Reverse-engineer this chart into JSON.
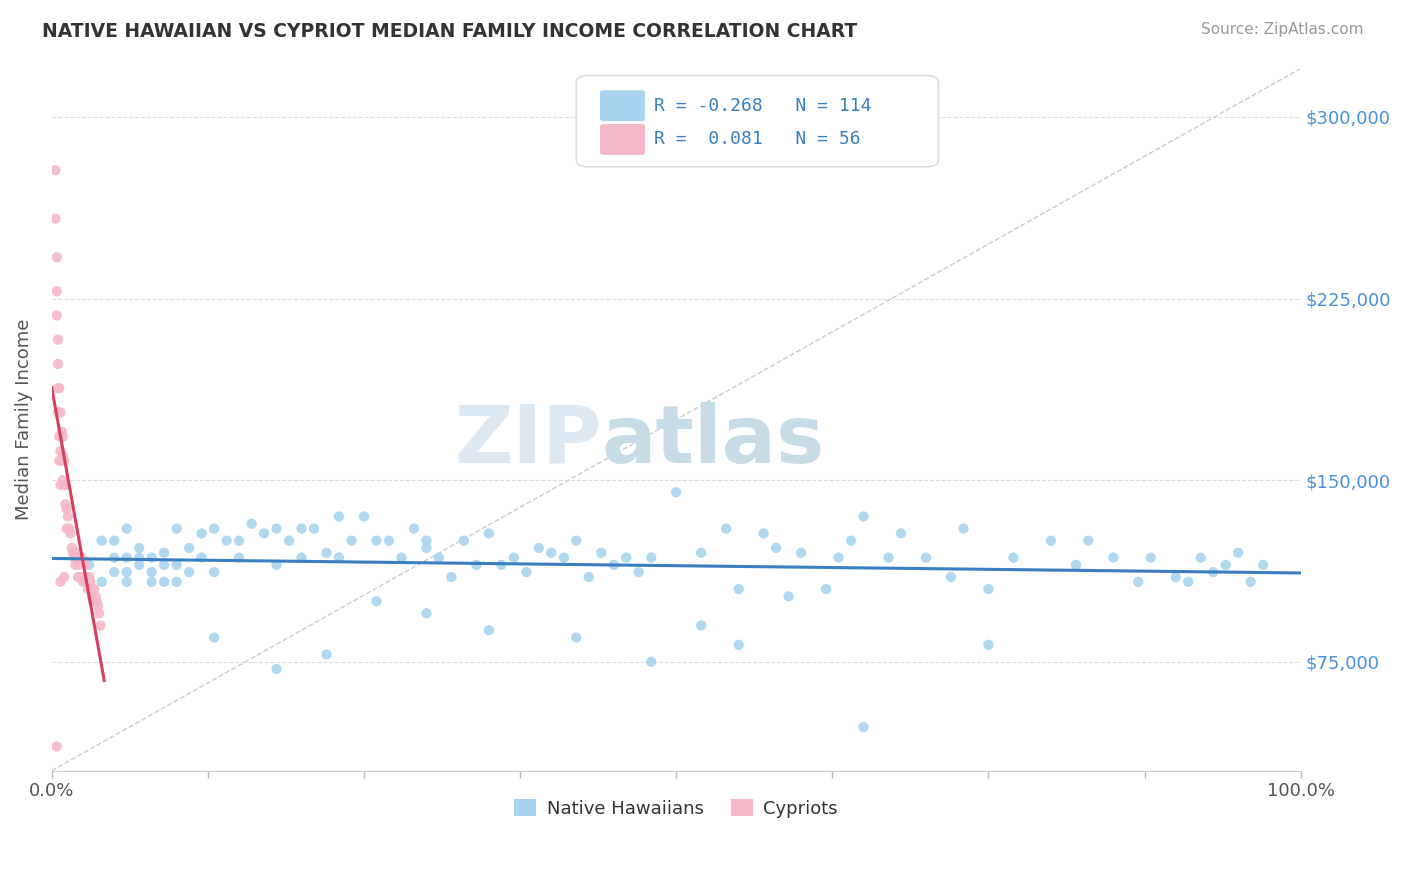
{
  "title": "NATIVE HAWAIIAN VS CYPRIOT MEDIAN FAMILY INCOME CORRELATION CHART",
  "source": "Source: ZipAtlas.com",
  "ylabel": "Median Family Income",
  "xlim": [
    0.0,
    1.0
  ],
  "ylim": [
    30000,
    320000
  ],
  "yticks": [
    75000,
    150000,
    225000,
    300000
  ],
  "ytick_labels": [
    "$75,000",
    "$150,000",
    "$225,000",
    "$300,000"
  ],
  "xtick_positions": [
    0.0,
    0.125,
    0.25,
    0.375,
    0.5,
    0.625,
    0.75,
    0.875,
    1.0
  ],
  "xtick_labels": [
    "0.0%",
    "",
    "",
    "",
    "",
    "",
    "",
    "",
    "100.0%"
  ],
  "watermark_zip": "ZIP",
  "watermark_atlas": "atlas",
  "legend_blue_r": "-0.268",
  "legend_blue_n": "114",
  "legend_pink_r": "0.081",
  "legend_pink_n": "56",
  "blue_color": "#a8d4f0",
  "pink_color": "#f4b8c8",
  "blue_line_color": "#3a7fc1",
  "pink_line_color": "#d44060",
  "diagonal_color": "#cccccc",
  "bg_color": "#ffffff",
  "grid_color": "#dddddd",
  "title_color": "#333333",
  "axis_label_color": "#555555",
  "ytick_color": "#4a90d9",
  "legend_text_color": "#3a7fc1",
  "blue_scatter_x": [
    0.02,
    0.03,
    0.04,
    0.04,
    0.05,
    0.05,
    0.05,
    0.06,
    0.06,
    0.06,
    0.06,
    0.07,
    0.07,
    0.07,
    0.08,
    0.08,
    0.08,
    0.09,
    0.09,
    0.09,
    0.1,
    0.1,
    0.1,
    0.11,
    0.11,
    0.12,
    0.12,
    0.13,
    0.13,
    0.14,
    0.15,
    0.15,
    0.16,
    0.17,
    0.18,
    0.18,
    0.19,
    0.2,
    0.2,
    0.21,
    0.22,
    0.23,
    0.23,
    0.24,
    0.25,
    0.26,
    0.27,
    0.28,
    0.29,
    0.3,
    0.3,
    0.31,
    0.32,
    0.33,
    0.34,
    0.35,
    0.36,
    0.37,
    0.38,
    0.39,
    0.4,
    0.41,
    0.42,
    0.43,
    0.44,
    0.45,
    0.46,
    0.47,
    0.48,
    0.5,
    0.52,
    0.54,
    0.55,
    0.57,
    0.58,
    0.59,
    0.6,
    0.62,
    0.63,
    0.64,
    0.65,
    0.67,
    0.68,
    0.7,
    0.72,
    0.73,
    0.75,
    0.77,
    0.8,
    0.82,
    0.83,
    0.85,
    0.87,
    0.88,
    0.9,
    0.91,
    0.92,
    0.93,
    0.94,
    0.95,
    0.96,
    0.97,
    0.52,
    0.13,
    0.35,
    0.48,
    0.22,
    0.3,
    0.42,
    0.18,
    0.26,
    0.55,
    0.65,
    0.75
  ],
  "blue_scatter_y": [
    120000,
    115000,
    125000,
    108000,
    118000,
    112000,
    125000,
    118000,
    112000,
    108000,
    130000,
    115000,
    122000,
    118000,
    118000,
    108000,
    112000,
    120000,
    115000,
    108000,
    130000,
    115000,
    108000,
    122000,
    112000,
    128000,
    118000,
    130000,
    112000,
    125000,
    125000,
    118000,
    132000,
    128000,
    130000,
    115000,
    125000,
    130000,
    118000,
    130000,
    120000,
    135000,
    118000,
    125000,
    135000,
    125000,
    125000,
    118000,
    130000,
    125000,
    122000,
    118000,
    110000,
    125000,
    115000,
    128000,
    115000,
    118000,
    112000,
    122000,
    120000,
    118000,
    125000,
    110000,
    120000,
    115000,
    118000,
    112000,
    118000,
    145000,
    120000,
    130000,
    105000,
    128000,
    122000,
    102000,
    120000,
    105000,
    118000,
    125000,
    135000,
    118000,
    128000,
    118000,
    110000,
    130000,
    105000,
    118000,
    125000,
    115000,
    125000,
    118000,
    108000,
    118000,
    110000,
    108000,
    118000,
    112000,
    115000,
    120000,
    108000,
    115000,
    90000,
    85000,
    88000,
    75000,
    78000,
    95000,
    85000,
    72000,
    100000,
    82000,
    48000,
    82000
  ],
  "pink_scatter_x": [
    0.003,
    0.003,
    0.004,
    0.004,
    0.004,
    0.005,
    0.005,
    0.005,
    0.005,
    0.006,
    0.006,
    0.006,
    0.007,
    0.007,
    0.007,
    0.008,
    0.008,
    0.009,
    0.009,
    0.009,
    0.01,
    0.01,
    0.011,
    0.011,
    0.012,
    0.012,
    0.013,
    0.014,
    0.015,
    0.016,
    0.017,
    0.018,
    0.019,
    0.02,
    0.021,
    0.022,
    0.023,
    0.024,
    0.025,
    0.026,
    0.027,
    0.028,
    0.029,
    0.03,
    0.031,
    0.032,
    0.033,
    0.034,
    0.035,
    0.036,
    0.037,
    0.038,
    0.039,
    0.004,
    0.007,
    0.01
  ],
  "pink_scatter_y": [
    278000,
    258000,
    242000,
    228000,
    218000,
    208000,
    198000,
    188000,
    178000,
    168000,
    188000,
    158000,
    178000,
    148000,
    162000,
    158000,
    170000,
    168000,
    160000,
    150000,
    158000,
    148000,
    140000,
    148000,
    138000,
    130000,
    135000,
    130000,
    128000,
    122000,
    120000,
    118000,
    115000,
    120000,
    110000,
    115000,
    110000,
    118000,
    108000,
    110000,
    115000,
    108000,
    105000,
    110000,
    108000,
    102000,
    100000,
    105000,
    102000,
    100000,
    98000,
    95000,
    90000,
    40000,
    108000,
    110000
  ]
}
